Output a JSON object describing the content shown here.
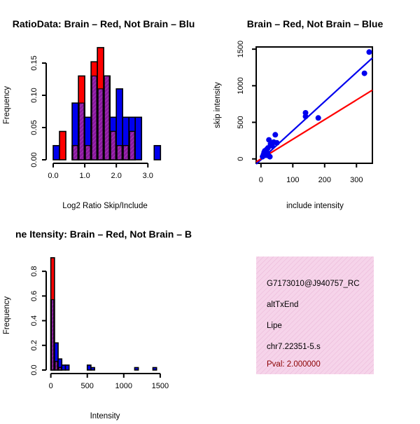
{
  "colors": {
    "red": "#ff0000",
    "blue": "#0000ee",
    "purple": "#8a1a9e",
    "info_bg": "#f6d4ea",
    "info_hatch": "#e8a6cc",
    "pval": "#8b0000"
  },
  "chart_data": [
    {
      "type": "histogram",
      "title": "RatioData: Brain – Red, Not Brain – Blu",
      "xlabel": "Log2 Ratio Skip/Include",
      "ylabel": "Frequency",
      "xlim": [
        -0.1,
        3.5
      ],
      "ylim": [
        0,
        0.175
      ],
      "x_ticks": [
        0.0,
        1.0,
        2.0,
        3.0
      ],
      "x_tick_labels": [
        "0.0",
        "1.0",
        "2.0",
        "3.0"
      ],
      "y_ticks": [
        0.0,
        0.05,
        0.1,
        0.15
      ],
      "y_tick_labels": [
        "0.00",
        "0.05",
        "0.10",
        "0.15"
      ],
      "bin_width": 0.2,
      "series": [
        {
          "name": "Not Brain",
          "color": "blue",
          "bin_starts": [
            0.0,
            0.2,
            0.4,
            0.6,
            0.8,
            1.0,
            1.2,
            1.4,
            1.6,
            1.8,
            2.0,
            2.2,
            2.4,
            2.6,
            2.8,
            3.0,
            3.2
          ],
          "values": [
            0.022,
            0.0,
            0.0,
            0.088,
            0.088,
            0.066,
            0.13,
            0.11,
            0.13,
            0.066,
            0.11,
            0.066,
            0.066,
            0.066,
            0.0,
            0.0,
            0.022
          ]
        },
        {
          "name": "Brain",
          "color": "red",
          "bin_starts": [
            0.0,
            0.2,
            0.4,
            0.6,
            0.8,
            1.0,
            1.2,
            1.4,
            1.6,
            1.8,
            2.0,
            2.2,
            2.4,
            2.6,
            2.8,
            3.0,
            3.2
          ],
          "values": [
            0.0,
            0.044,
            0.0,
            0.022,
            0.13,
            0.022,
            0.152,
            0.174,
            0.13,
            0.044,
            0.022,
            0.022,
            0.044,
            0.0,
            0.0,
            0.0,
            0.0
          ]
        }
      ]
    },
    {
      "type": "scatter",
      "title": "Brain – Red, Not Brain – Blue",
      "xlabel": "include intensity",
      "ylabel": "skip intensity",
      "xlim": [
        -15,
        350
      ],
      "ylim": [
        -60,
        1530
      ],
      "x_ticks": [
        0,
        100,
        200,
        300
      ],
      "x_tick_labels": [
        "0",
        "100",
        "200",
        "300"
      ],
      "y_ticks": [
        0,
        500,
        1000,
        1500
      ],
      "y_tick_labels": [
        "0",
        "500",
        "1000",
        "1500"
      ],
      "points": [
        {
          "x": 5,
          "y": 30
        },
        {
          "x": 8,
          "y": 60
        },
        {
          "x": 10,
          "y": 90
        },
        {
          "x": 12,
          "y": 110
        },
        {
          "x": 15,
          "y": 50
        },
        {
          "x": 18,
          "y": 130
        },
        {
          "x": 20,
          "y": 80
        },
        {
          "x": 22,
          "y": 150
        },
        {
          "x": 25,
          "y": 40
        },
        {
          "x": 25,
          "y": 260
        },
        {
          "x": 28,
          "y": 30
        },
        {
          "x": 30,
          "y": 200
        },
        {
          "x": 35,
          "y": 180
        },
        {
          "x": 40,
          "y": 230
        },
        {
          "x": 45,
          "y": 330
        },
        {
          "x": 50,
          "y": 220
        },
        {
          "x": 140,
          "y": 630
        },
        {
          "x": 140,
          "y": 580
        },
        {
          "x": 180,
          "y": 560
        },
        {
          "x": 325,
          "y": 1170
        },
        {
          "x": 340,
          "y": 1460
        }
      ],
      "lines": [
        {
          "name": "Not Brain fit",
          "color": "blue",
          "x": [
            -15,
            350
          ],
          "y": [
            -70,
            1380
          ]
        },
        {
          "name": "Brain fit",
          "color": "red",
          "x": [
            -15,
            350
          ],
          "y": [
            -40,
            940
          ]
        }
      ]
    },
    {
      "type": "histogram",
      "title": "ne Itensity: Brain – Red, Not Brain – B",
      "xlabel": "Intensity",
      "ylabel": "Frequency",
      "xlim": [
        -30,
        1530
      ],
      "ylim": [
        0,
        0.92
      ],
      "x_ticks": [
        0,
        500,
        1000,
        1500
      ],
      "x_tick_labels": [
        "0",
        "500",
        "1000",
        "1500"
      ],
      "y_ticks": [
        0.0,
        0.2,
        0.4,
        0.6,
        0.8
      ],
      "y_tick_labels": [
        "0.0",
        "0.2",
        "0.4",
        "0.6",
        "0.8"
      ],
      "bin_width": 50,
      "series": [
        {
          "name": "Not Brain",
          "color": "blue",
          "bin_starts": [
            0,
            50,
            100,
            150,
            200,
            250,
            300,
            350,
            400,
            450,
            500,
            550,
            600,
            650,
            700,
            750,
            800,
            850,
            900,
            950,
            1000,
            1050,
            1100,
            1150,
            1200,
            1250,
            1300,
            1350,
            1400,
            1450
          ],
          "values": [
            0.57,
            0.22,
            0.09,
            0.04,
            0.04,
            0.0,
            0.0,
            0.0,
            0.0,
            0.0,
            0.04,
            0.02,
            0.0,
            0.0,
            0.0,
            0.0,
            0.0,
            0.0,
            0.0,
            0.0,
            0.0,
            0.0,
            0.0,
            0.02,
            0.0,
            0.0,
            0.0,
            0.0,
            0.02,
            0.0
          ]
        },
        {
          "name": "Brain",
          "color": "red",
          "bin_starts": [
            0,
            50,
            100
          ],
          "values": [
            0.91,
            0.07,
            0.02
          ]
        }
      ]
    }
  ],
  "info_panel": {
    "id_text": "G7173010@J940757_RC",
    "event_type": "altTxEnd",
    "gene": "Lipe",
    "location": "chr7.22351-5.s",
    "pval": "Pval: 2.000000"
  }
}
